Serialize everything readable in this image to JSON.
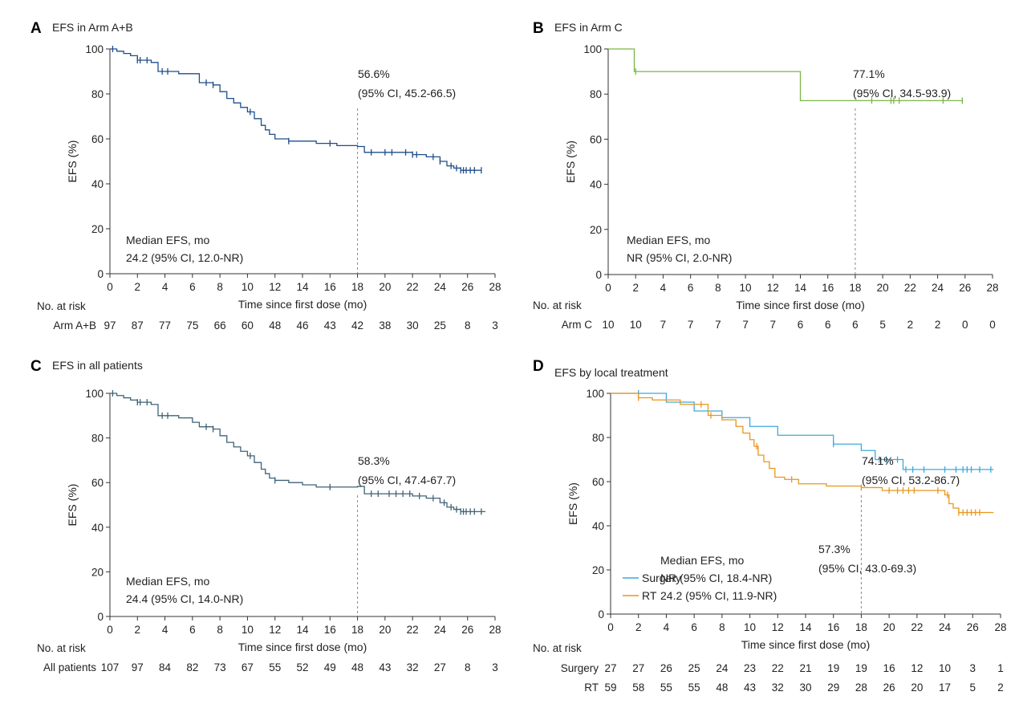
{
  "chart_data": [
    {
      "type": "line",
      "panel": "A",
      "title": "EFS in Arm A+B",
      "xlabel": "Time since first dose (mo)",
      "ylabel": "EFS (%)",
      "xlim": [
        0,
        28
      ],
      "ylim": [
        0,
        100
      ],
      "xticks": [
        0,
        2,
        4,
        6,
        8,
        10,
        12,
        14,
        16,
        18,
        20,
        22,
        24,
        26,
        28
      ],
      "yticks": [
        0,
        20,
        40,
        60,
        80,
        100
      ],
      "reference_x": 18,
      "landmark": {
        "x": 18,
        "pct": "56.6%",
        "ci": "(95% CI, 45.2-66.5)"
      },
      "median": {
        "heading": "Median EFS, mo",
        "lines": [
          "24.2 (95% CI, 12.0-NR)"
        ]
      },
      "color": "#1f4e8c",
      "series": [
        {
          "name": "",
          "x": [
            0,
            0.5,
            1.0,
            1.5,
            2.0,
            3.0,
            3.5,
            5.0,
            6.5,
            7.5,
            8.0,
            8.5,
            9.0,
            9.5,
            10.0,
            10.5,
            11.0,
            11.3,
            11.6,
            12.0,
            13.0,
            15.0,
            16.5,
            18.0,
            18.5,
            22.0,
            23.0,
            24.0,
            24.5,
            25.0,
            25.5,
            27.0
          ],
          "y": [
            100,
            99,
            98,
            97,
            95,
            94,
            90,
            89,
            85,
            84,
            81,
            78,
            76,
            74,
            72,
            69,
            66,
            64,
            62,
            60,
            59,
            58,
            57,
            56.6,
            54,
            53,
            52,
            50,
            48,
            47,
            46,
            46
          ],
          "censor_x": [
            0.2,
            2.0,
            2.2,
            2.7,
            3.8,
            4.2,
            7.0,
            7.5,
            10.2,
            13.0,
            16.0,
            19.0,
            20.0,
            20.5,
            21.5,
            22.0,
            22.3,
            23.5,
            24.0,
            24.8,
            25.2,
            25.5,
            25.7,
            25.9,
            26.2,
            26.5,
            27.0
          ]
        }
      ],
      "risk_table": {
        "heading": "No. at risk",
        "rows": [
          {
            "label": "Arm A+B",
            "values": [
              "97",
              "87",
              "77",
              "75",
              "66",
              "60",
              "48",
              "46",
              "43",
              "42",
              "38",
              "30",
              "25",
              "8",
              "3"
            ]
          }
        ]
      }
    },
    {
      "type": "line",
      "panel": "B",
      "title": "EFS in Arm C",
      "xlabel": "Time since first dose (mo)",
      "ylabel": "EFS (%)",
      "xlim": [
        0,
        28
      ],
      "ylim": [
        0,
        100
      ],
      "xticks": [
        0,
        2,
        4,
        6,
        8,
        10,
        12,
        14,
        16,
        18,
        20,
        22,
        24,
        26,
        28
      ],
      "yticks": [
        0,
        20,
        40,
        60,
        80,
        100
      ],
      "reference_x": 18,
      "landmark": {
        "x": 18,
        "pct": "77.1%",
        "ci": "(95% CI, 34.5-93.9)"
      },
      "median": {
        "heading": "Median EFS, mo",
        "lines": [
          "NR (95% CI, 2.0-NR)"
        ]
      },
      "color": "#7ab648",
      "series": [
        {
          "name": "",
          "x": [
            0,
            1.9,
            14.0,
            25.8
          ],
          "y": [
            100,
            90,
            77.1,
            77.1
          ],
          "censor_x": [
            2.0,
            19.2,
            20.6,
            20.8,
            21.2,
            24.4,
            25.8
          ]
        }
      ],
      "risk_table": {
        "heading": "No. at risk",
        "rows": [
          {
            "label": "Arm C",
            "values": [
              "10",
              "10",
              "7",
              "7",
              "7",
              "7",
              "7",
              "6",
              "6",
              "6",
              "5",
              "2",
              "2",
              "0",
              "0"
            ]
          }
        ]
      }
    },
    {
      "type": "line",
      "panel": "C",
      "title": "EFS in all patients",
      "xlabel": "Time since first dose (mo)",
      "ylabel": "EFS (%)",
      "xlim": [
        0,
        28
      ],
      "ylim": [
        0,
        100
      ],
      "xticks": [
        0,
        2,
        4,
        6,
        8,
        10,
        12,
        14,
        16,
        18,
        20,
        22,
        24,
        26,
        28
      ],
      "yticks": [
        0,
        20,
        40,
        60,
        80,
        100
      ],
      "reference_x": 18,
      "landmark": {
        "x": 18,
        "pct": "58.3%",
        "ci": "(95% CI, 47.4-67.7)"
      },
      "median": {
        "heading": "Median EFS, mo",
        "lines": [
          "24.4 (95% CI, 14.0-NR)"
        ]
      },
      "color": "#3f6377",
      "series": [
        {
          "name": "",
          "x": [
            0,
            0.5,
            1.0,
            1.5,
            2.0,
            3.0,
            3.5,
            5.0,
            6.0,
            6.5,
            7.5,
            8.0,
            8.5,
            9.0,
            9.5,
            10.0,
            10.5,
            11.0,
            11.3,
            11.6,
            12.0,
            13.0,
            14.0,
            15.0,
            16.5,
            18.0,
            18.5,
            22.0,
            23.0,
            24.0,
            24.5,
            25.0,
            25.5,
            27.3
          ],
          "y": [
            100,
            99,
            98,
            97,
            96,
            95,
            90,
            89,
            87,
            85,
            84,
            81,
            78,
            76,
            74,
            72,
            69,
            66,
            64,
            62,
            61,
            60,
            59,
            58,
            58,
            58.3,
            55,
            54,
            53,
            51,
            49,
            48,
            47,
            47
          ],
          "censor_x": [
            0.2,
            2.0,
            2.2,
            2.7,
            3.8,
            4.2,
            7.0,
            7.5,
            10.2,
            12.0,
            16.0,
            19.0,
            19.5,
            20.3,
            20.8,
            21.3,
            21.8,
            22.5,
            23.5,
            24.3,
            24.8,
            25.2,
            25.5,
            25.7,
            25.9,
            26.2,
            26.5,
            27.0
          ]
        }
      ],
      "risk_table": {
        "heading": "No. at risk",
        "rows": [
          {
            "label": "All patients",
            "values": [
              "107",
              "97",
              "84",
              "82",
              "73",
              "67",
              "55",
              "52",
              "49",
              "48",
              "43",
              "32",
              "27",
              "8",
              "3"
            ]
          }
        ]
      }
    },
    {
      "type": "line",
      "panel": "D",
      "title": "EFS by local treatment",
      "xlabel": "Time since first dose (mo)",
      "ylabel": "EFS (%)",
      "xlim": [
        0,
        28
      ],
      "ylim": [
        0,
        100
      ],
      "xticks": [
        0,
        2,
        4,
        6,
        8,
        10,
        12,
        14,
        16,
        18,
        20,
        22,
        24,
        26,
        28
      ],
      "yticks": [
        0,
        20,
        40,
        60,
        80,
        100
      ],
      "reference_x": 18,
      "landmarks": [
        {
          "x": 18,
          "pct": "74.1%",
          "ci": "(95% CI, 53.2-86.7)"
        },
        {
          "x": 18,
          "pct": "57.3%",
          "ci": "(95% CI, 43.0-69.3)"
        }
      ],
      "median": {
        "heading": "Median EFS, mo",
        "lines": [
          "NR (95% CI, 18.4-NR)",
          "24.2 (95% CI, 11.9-NR)"
        ]
      },
      "legend": {
        "position": "bottom-left"
      },
      "series": [
        {
          "name": "Surgery",
          "color": "#3fa9dc",
          "x": [
            0,
            4.0,
            6.0,
            8.0,
            10.0,
            12.0,
            16.0,
            18.0,
            19.0,
            21.0,
            27.5
          ],
          "y": [
            100,
            96,
            92,
            89,
            85,
            81,
            77,
            74.1,
            70,
            65.5,
            65.5
          ],
          "censor_x": [
            2.0,
            16.0,
            19.3,
            19.8,
            20.6,
            21.2,
            21.7,
            22.5,
            24.0,
            24.8,
            25.3,
            25.6,
            25.9,
            26.5,
            27.3
          ]
        },
        {
          "name": "RT",
          "color": "#e8961e",
          "x": [
            0,
            2.0,
            3.0,
            5.0,
            7.0,
            8.0,
            9.0,
            9.5,
            10.0,
            10.3,
            10.6,
            11.0,
            11.4,
            11.8,
            12.5,
            13.5,
            15.5,
            18.0,
            19.5,
            24.0,
            24.3,
            24.6,
            25.0,
            27.5
          ],
          "y": [
            100,
            98,
            97,
            95,
            90,
            88,
            85,
            82,
            79,
            76,
            72,
            69,
            66,
            62,
            61,
            59,
            58,
            57.3,
            56,
            54,
            50,
            48,
            46,
            46
          ],
          "censor_x": [
            2.0,
            6.5,
            7.2,
            10.5,
            13.0,
            18.0,
            20.0,
            20.6,
            21.0,
            21.4,
            21.8,
            23.5,
            24.2,
            25.0,
            25.3,
            25.6,
            25.9,
            26.2,
            26.5
          ]
        }
      ],
      "risk_table": {
        "heading": "No. at risk",
        "rows": [
          {
            "label": "Surgery",
            "values": [
              "27",
              "27",
              "26",
              "25",
              "24",
              "23",
              "22",
              "21",
              "19",
              "19",
              "16",
              "12",
              "10",
              "3",
              "1"
            ]
          },
          {
            "label": "RT",
            "values": [
              "59",
              "58",
              "55",
              "55",
              "48",
              "43",
              "32",
              "30",
              "29",
              "28",
              "26",
              "20",
              "17",
              "5",
              "2"
            ]
          }
        ]
      }
    }
  ]
}
